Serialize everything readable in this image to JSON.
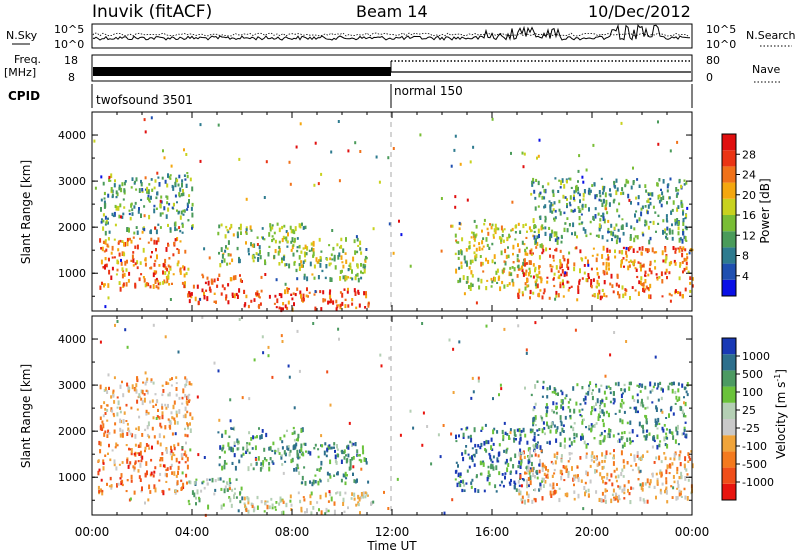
{
  "header": {
    "station": "Inuvik (fitACF)",
    "beam": "Beam 14",
    "date": "10/Dec/2012"
  },
  "summary_panels": {
    "nsky_label": "N.Sky",
    "nsky_ticks": [
      "10^5",
      "10^0"
    ],
    "nsearch_label": "N.Search",
    "nsearch_ticks": [
      "10^5",
      "10^0"
    ],
    "freq_label_line1": "Freq.",
    "freq_label_line2": "[MHz]",
    "freq_ticks": [
      "18",
      "8"
    ],
    "nave_label": "Nave",
    "nave_ticks": [
      "80",
      "0"
    ],
    "cpid_label": "CPID",
    "cpid_segments": [
      {
        "label": "twofsound 3501",
        "start_hour": 0,
        "end_hour": 12
      },
      {
        "label": "normal 150",
        "start_hour": 12,
        "end_hour": 24
      }
    ]
  },
  "colors": {
    "background": "#ffffff",
    "axis": "#000000",
    "power_scale": [
      "#0a10e6",
      "#1f4fb0",
      "#2e7b8f",
      "#4a9b5a",
      "#79bd35",
      "#c8d21f",
      "#f4a70f",
      "#f0721a",
      "#ea3414",
      "#e00f0f"
    ],
    "velocity_scale": [
      "#e8140e",
      "#f04e1a",
      "#f47a1e",
      "#f0a43a",
      "#c9c9c9",
      "#b4cfb4",
      "#6ac23a",
      "#4c9a62",
      "#2d6f8c",
      "#1939b5"
    ]
  },
  "chart_data": [
    {
      "type": "heatmap",
      "title": "",
      "xlabel": "Time UT",
      "ylabel": "Slant Range [km]",
      "xlim_hours": [
        0,
        24
      ],
      "ylim_km": [
        180,
        4500
      ],
      "x_ticks": [
        "00:00",
        "04:00",
        "08:00",
        "12:00",
        "16:00",
        "20:00",
        "00:00"
      ],
      "y_ticks": [
        1000,
        2000,
        3000,
        4000
      ],
      "colorbar_label": "Power [dB]",
      "colorbar_ticks": [
        "4",
        "8",
        "12",
        "16",
        "20",
        "24",
        "28"
      ],
      "colorbar_range": [
        0,
        30
      ],
      "grid": false,
      "regions": [
        {
          "t": [
            0.2,
            3.8
          ],
          "r": [
            700,
            1800
          ],
          "level": 23
        },
        {
          "t": [
            3.8,
            6.0
          ],
          "r": [
            400,
            1000
          ],
          "level": 25
        },
        {
          "t": [
            6.0,
            11.2
          ],
          "r": [
            250,
            700
          ],
          "level": 26
        },
        {
          "t": [
            5.0,
            8.5
          ],
          "r": [
            1200,
            2100
          ],
          "level": 14
        },
        {
          "t": [
            8.0,
            11.0
          ],
          "r": [
            900,
            1800
          ],
          "level": 13
        },
        {
          "t": [
            0.3,
            4.0
          ],
          "r": [
            1900,
            3200
          ],
          "level": 10
        },
        {
          "t": [
            14.5,
            18.0
          ],
          "r": [
            700,
            2100
          ],
          "level": 16
        },
        {
          "t": [
            17.0,
            24.0
          ],
          "r": [
            500,
            1600
          ],
          "level": 22
        },
        {
          "t": [
            17.5,
            23.8
          ],
          "r": [
            1700,
            3100
          ],
          "level": 10
        }
      ]
    },
    {
      "type": "heatmap",
      "title": "",
      "xlabel": "Time UT",
      "ylabel": "Slant Range [km]",
      "xlim_hours": [
        0,
        24
      ],
      "ylim_km": [
        180,
        4500
      ],
      "x_ticks": [
        "00:00",
        "04:00",
        "08:00",
        "12:00",
        "16:00",
        "20:00",
        "00:00"
      ],
      "y_ticks": [
        1000,
        2000,
        3000,
        4000
      ],
      "colorbar_label": "Velocity [m s-1]",
      "colorbar_label_main": "Velocity [m s",
      "colorbar_label_sup": "-1",
      "colorbar_label_end": "]",
      "colorbar_ticks": [
        "1000",
        "500",
        "100",
        "25",
        "-25",
        "-100",
        "-500",
        "-1000"
      ],
      "grid": false,
      "regions": [
        {
          "t": [
            0.2,
            3.8
          ],
          "r": [
            700,
            1800
          ],
          "level": 2
        },
        {
          "t": [
            3.8,
            6.0
          ],
          "r": [
            400,
            1000
          ],
          "level": 6
        },
        {
          "t": [
            6.0,
            11.2
          ],
          "r": [
            250,
            700
          ],
          "level": 4
        },
        {
          "t": [
            5.0,
            8.5
          ],
          "r": [
            1200,
            2100
          ],
          "level": 7
        },
        {
          "t": [
            8.0,
            11.0
          ],
          "r": [
            900,
            1800
          ],
          "level": 7
        },
        {
          "t": [
            0.3,
            4.0
          ],
          "r": [
            1900,
            3200
          ],
          "level": 3
        },
        {
          "t": [
            14.5,
            18.0
          ],
          "r": [
            700,
            2100
          ],
          "level": 8
        },
        {
          "t": [
            17.0,
            24.0
          ],
          "r": [
            500,
            1600
          ],
          "level": 3
        },
        {
          "t": [
            17.5,
            23.8
          ],
          "r": [
            1700,
            3100
          ],
          "level": 7
        }
      ]
    }
  ]
}
